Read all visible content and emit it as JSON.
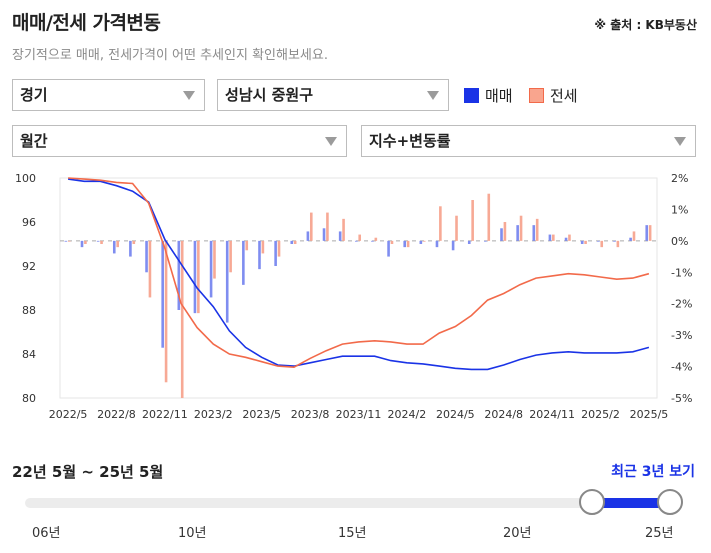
{
  "header": {
    "title": "매매/전세 가격변동",
    "source": "※ 출처 : KB부동산",
    "subtitle": "장기적으로 매매, 전세가격이 어떤 추세인지 확인해보세요."
  },
  "filters": {
    "region": "경기",
    "district": "성남시 중원구",
    "period": "월간",
    "metric": "지수+변동률"
  },
  "legend": [
    {
      "label": "매매",
      "color": "#1a33e6"
    },
    {
      "label": "전세",
      "color": "#f26a4a"
    }
  ],
  "chart_data": {
    "type": "line+bar",
    "x_ticks": [
      "2022/5",
      "2022/8",
      "2022/11",
      "2023/2",
      "2023/5",
      "2023/8",
      "2023/11",
      "2024/2",
      "2024/5",
      "2024/8",
      "2024/11",
      "2025/2",
      "2025/5"
    ],
    "y_left_ticks": [
      "100",
      "96",
      "92",
      "88",
      "84",
      "80"
    ],
    "y_right_ticks": [
      "2%",
      "1%",
      "0%",
      "-1%",
      "-2%",
      "-3%",
      "-4%",
      "-5%"
    ],
    "y_left_range": [
      80,
      100
    ],
    "y_right_range": [
      -5,
      2
    ],
    "series": [
      {
        "name": "매매",
        "color": "#1a33e6",
        "index": [
          99.9,
          99.7,
          99.7,
          99.3,
          98.8,
          97.8,
          94.4,
          92.2,
          90.0,
          88.3,
          86.1,
          84.6,
          83.7,
          83.0,
          82.9,
          83.2,
          83.5,
          83.8,
          83.8,
          83.8,
          83.4,
          83.2,
          83.1,
          82.9,
          82.7,
          82.6,
          82.6,
          83.0,
          83.5,
          83.9,
          84.1,
          84.2,
          84.1,
          84.1,
          84.1,
          84.2,
          84.6
        ],
        "change": [
          0.0,
          -0.2,
          0.0,
          -0.4,
          -0.5,
          -1.0,
          -3.4,
          -2.2,
          -2.3,
          -1.8,
          -2.6,
          -1.4,
          -0.9,
          -0.8,
          -0.1,
          0.3,
          0.4,
          0.3,
          0.0,
          0.0,
          -0.5,
          -0.2,
          -0.1,
          -0.2,
          -0.3,
          -0.1,
          0.0,
          0.4,
          0.5,
          0.5,
          0.2,
          0.1,
          -0.1,
          0.0,
          0.0,
          0.1,
          0.5
        ]
      },
      {
        "name": "전세",
        "color": "#f26a4a",
        "index": [
          100.0,
          99.9,
          99.8,
          99.6,
          99.5,
          97.7,
          93.6,
          88.6,
          86.4,
          84.9,
          84.0,
          83.7,
          83.3,
          82.9,
          82.8,
          83.6,
          84.3,
          84.9,
          85.1,
          85.2,
          85.1,
          84.9,
          84.9,
          85.9,
          86.5,
          87.5,
          88.9,
          89.5,
          90.3,
          90.9,
          91.1,
          91.3,
          91.2,
          91.0,
          90.8,
          90.9,
          91.3
        ],
        "change": [
          0.0,
          -0.1,
          -0.1,
          -0.2,
          -0.1,
          -1.8,
          -4.5,
          -5.0,
          -2.3,
          -1.2,
          -1.0,
          -0.3,
          -0.4,
          -0.5,
          -0.1,
          0.9,
          0.9,
          0.7,
          0.2,
          0.1,
          -0.1,
          -0.2,
          0.0,
          1.1,
          0.8,
          1.3,
          1.5,
          0.6,
          0.8,
          0.7,
          0.2,
          0.2,
          -0.1,
          -0.2,
          -0.2,
          0.3,
          0.5
        ]
      }
    ]
  },
  "range": {
    "label": "22년 5월 ~ 25년 5월",
    "recent_button": "최근 3년 보기",
    "years": [
      "06년",
      "10년",
      "15년",
      "20년",
      "25년"
    ]
  }
}
